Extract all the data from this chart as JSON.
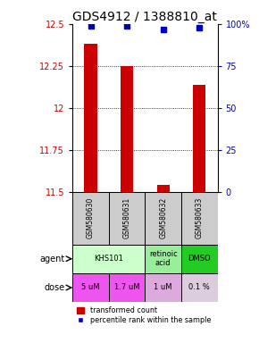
{
  "title": "GDS4912 / 1388810_at",
  "samples": [
    "GSM580630",
    "GSM580631",
    "GSM580632",
    "GSM580633"
  ],
  "transformed_counts": [
    12.38,
    12.25,
    11.54,
    12.14
  ],
  "percentile_ranks": [
    99,
    99,
    97,
    98
  ],
  "ylim_left": [
    11.5,
    12.5
  ],
  "ylim_right": [
    0,
    100
  ],
  "yticks_left": [
    11.5,
    11.75,
    12.0,
    12.25,
    12.5
  ],
  "ytick_labels_left": [
    "11.5",
    "11.75",
    "12",
    "12.25",
    "12.5"
  ],
  "yticks_right": [
    0,
    25,
    50,
    75,
    100
  ],
  "ytick_labels_right": [
    "0",
    "25",
    "50",
    "75",
    "100%"
  ],
  "bar_color": "#cc0000",
  "dot_color": "#0000bb",
  "agent_spans": [
    {
      "start": 0,
      "end": 2,
      "label": "KHS101",
      "color": "#ccffcc"
    },
    {
      "start": 2,
      "end": 3,
      "label": "retinoic\nacid",
      "color": "#99ee99"
    },
    {
      "start": 3,
      "end": 4,
      "label": "DMSO",
      "color": "#22cc22"
    }
  ],
  "dose_labels": [
    "5 uM",
    "1.7 uM",
    "1 uM",
    "0.1 %"
  ],
  "dose_colors": [
    "#ee55ee",
    "#ee55ee",
    "#ddaadd",
    "#ddccdd"
  ],
  "sample_bg": "#cccccc",
  "agent_row_label": "agent",
  "dose_row_label": "dose",
  "legend_bar_label": "transformed count",
  "legend_dot_label": "percentile rank within the sample",
  "title_fontsize": 10,
  "tick_fontsize": 7,
  "label_fontsize": 7,
  "cell_fontsize": 6.5
}
